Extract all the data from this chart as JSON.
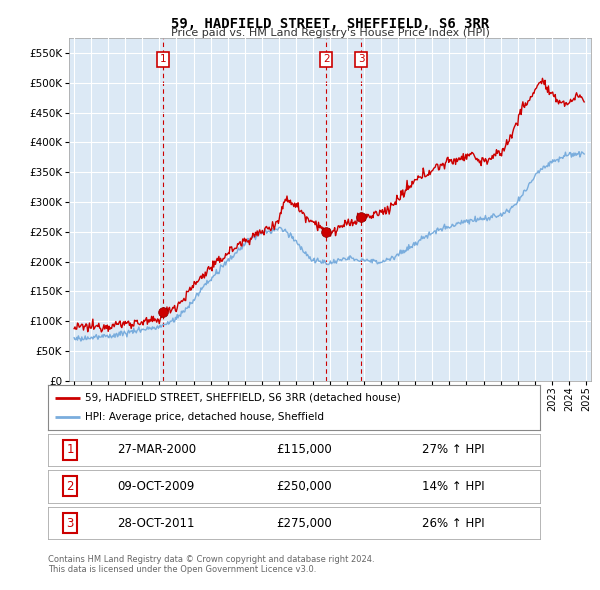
{
  "title": "59, HADFIELD STREET, SHEFFIELD, S6 3RR",
  "subtitle": "Price paid vs. HM Land Registry's House Price Index (HPI)",
  "ytick_values": [
    0,
    50000,
    100000,
    150000,
    200000,
    250000,
    300000,
    350000,
    400000,
    450000,
    500000,
    550000
  ],
  "ylim": [
    0,
    575000
  ],
  "xlim_start": 1994.7,
  "xlim_end": 2025.3,
  "sale_years": [
    2000.23,
    2009.77,
    2011.82
  ],
  "sale_prices": [
    115000,
    250000,
    275000
  ],
  "sale_labels": [
    "1",
    "2",
    "3"
  ],
  "sale_hpi_pct": [
    "27% ↑ HPI",
    "14% ↑ HPI",
    "26% ↑ HPI"
  ],
  "sale_date_labels": [
    "27-MAR-2000",
    "09-OCT-2009",
    "28-OCT-2011"
  ],
  "sale_price_labels": [
    "£115,000",
    "£250,000",
    "£275,000"
  ],
  "red_color": "#cc0000",
  "blue_color": "#7aaddd",
  "legend_line1": "59, HADFIELD STREET, SHEFFIELD, S6 3RR (detached house)",
  "legend_line2": "HPI: Average price, detached house, Sheffield",
  "footer1": "Contains HM Land Registry data © Crown copyright and database right 2024.",
  "footer2": "This data is licensed under the Open Government Licence v3.0.",
  "background_color": "#ffffff",
  "plot_bg_color": "#dce9f5",
  "grid_color": "#ffffff",
  "dashed_line_color": "#cc0000",
  "box_color": "#cc0000"
}
